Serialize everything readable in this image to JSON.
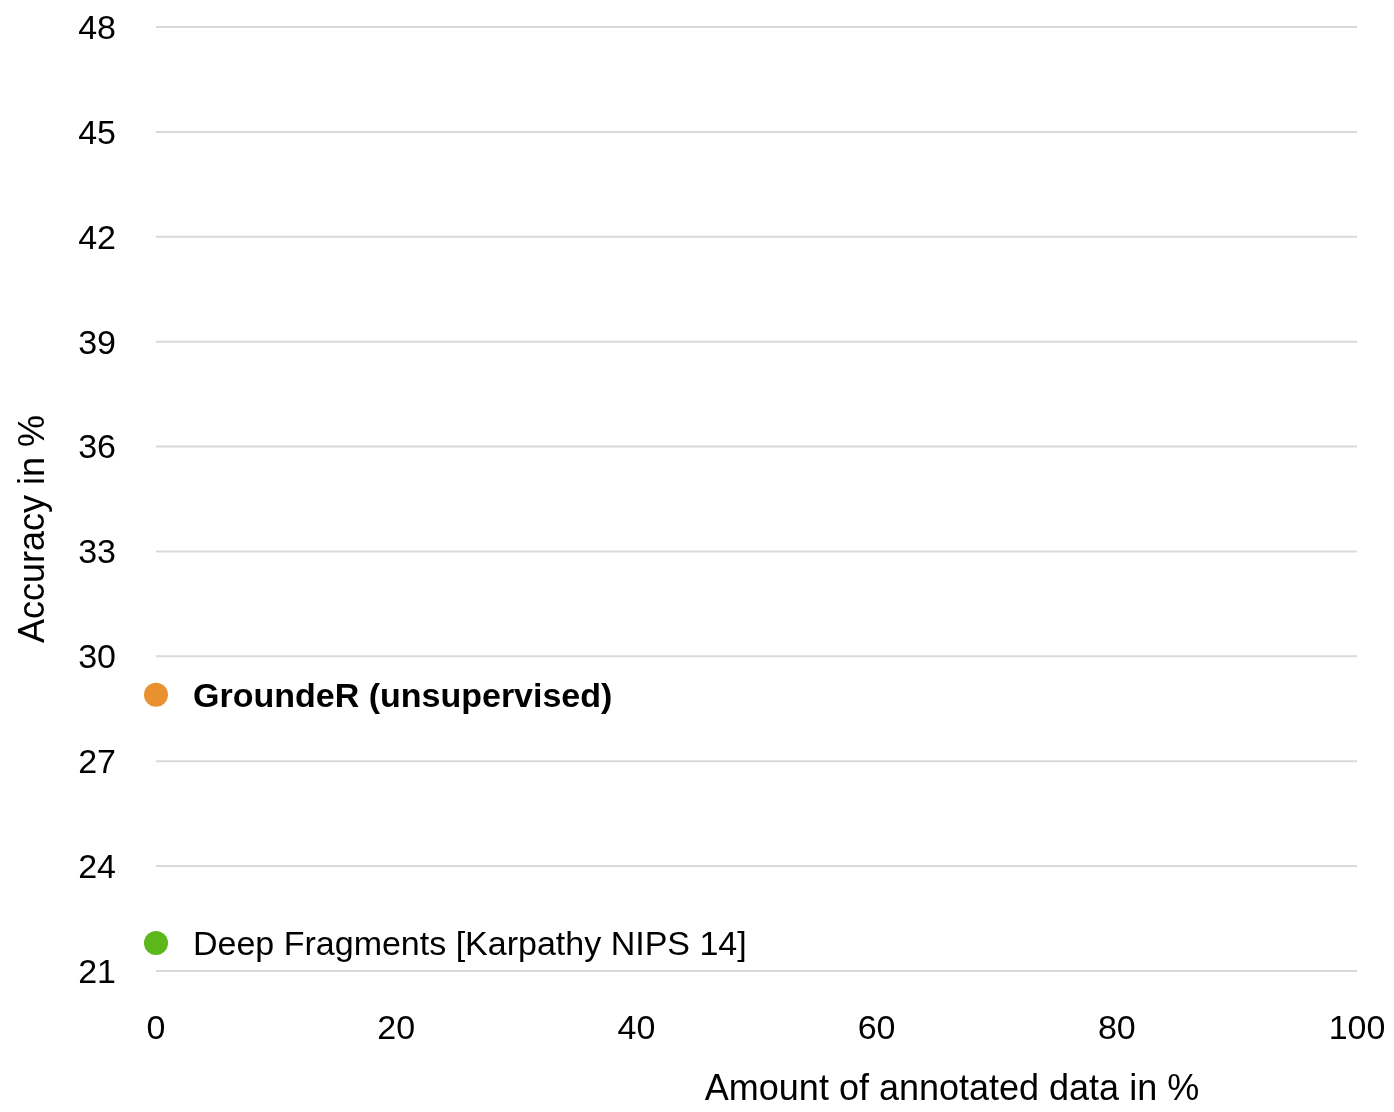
{
  "chart_data": {
    "type": "scatter",
    "xlabel": "Amount of annotated data in %",
    "ylabel": "Accuracy in %",
    "xlim": [
      0,
      100
    ],
    "xticks": [
      0,
      20,
      40,
      60,
      80,
      100
    ],
    "ylim": [
      21,
      48
    ],
    "yticks": [
      21,
      24,
      27,
      30,
      33,
      36,
      39,
      42,
      45,
      48
    ],
    "grid": "y",
    "legend": false,
    "marker": "circle",
    "series": [
      {
        "name": "GroundeR (unsupervised)",
        "color": "#e8912e",
        "x": [
          0
        ],
        "values": [
          28.9
        ]
      },
      {
        "name": "Deep Fragments [Karpathy NIPS 14]",
        "color": "#5cb81a",
        "x": [
          0
        ],
        "values": [
          21.8
        ]
      }
    ]
  }
}
